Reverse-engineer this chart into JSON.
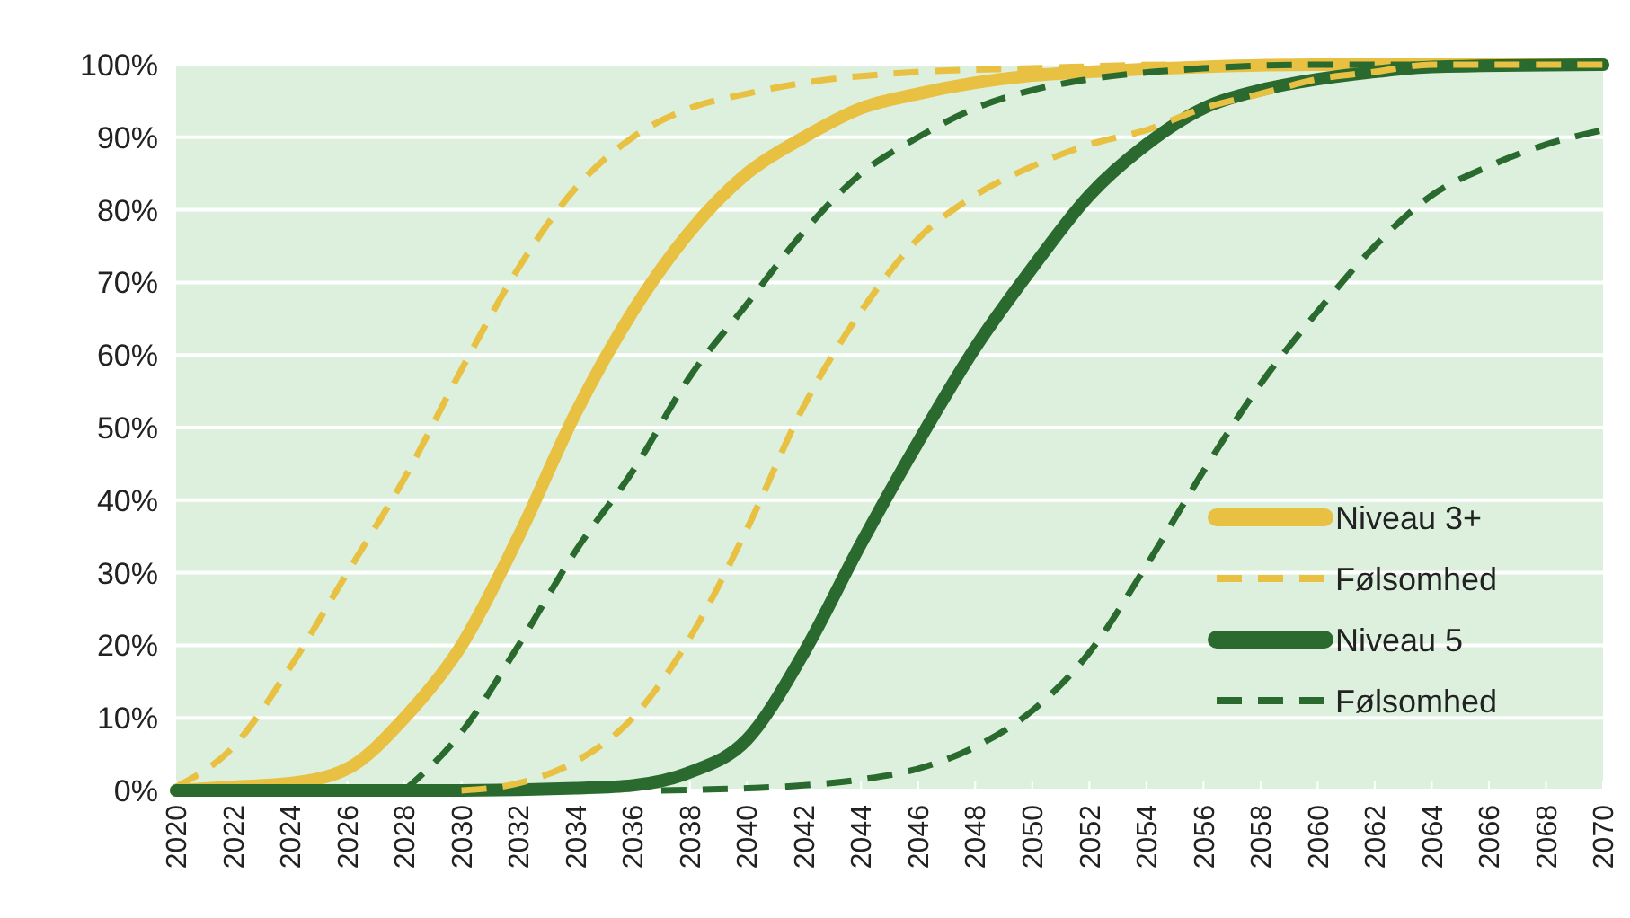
{
  "chart_data": {
    "type": "line",
    "xlim": [
      2020,
      2070
    ],
    "ylim": [
      0,
      100
    ],
    "xticks": [
      2020,
      2022,
      2024,
      2026,
      2028,
      2030,
      2032,
      2034,
      2036,
      2038,
      2040,
      2042,
      2044,
      2046,
      2048,
      2050,
      2052,
      2054,
      2056,
      2058,
      2060,
      2062,
      2064,
      2066,
      2068,
      2070
    ],
    "yticks": [
      {
        "value": 0,
        "label": "0%"
      },
      {
        "value": 10,
        "label": "10%"
      },
      {
        "value": 20,
        "label": "20%"
      },
      {
        "value": 30,
        "label": "30%"
      },
      {
        "value": 40,
        "label": "40%"
      },
      {
        "value": 50,
        "label": "50%"
      },
      {
        "value": 60,
        "label": "60%"
      },
      {
        "value": 70,
        "label": "70%"
      },
      {
        "value": 80,
        "label": "80%"
      },
      {
        "value": 90,
        "label": "90%"
      },
      {
        "value": 100,
        "label": "100%"
      }
    ],
    "grid": "y",
    "legend": "bottom right",
    "marker": "none",
    "series": [
      {
        "name": "Niveau 3+",
        "color": "#e8c042",
        "line_style": "solid",
        "x": [
          2020,
          2022,
          2024,
          2026,
          2028,
          2030,
          2032,
          2034,
          2036,
          2038,
          2040,
          2042,
          2044,
          2046,
          2048,
          2050,
          2052,
          2056,
          2060,
          2070
        ],
        "values": [
          0,
          0.5,
          1,
          3,
          10,
          20,
          35,
          52,
          66,
          77,
          85,
          90,
          94,
          96,
          97.5,
          98.5,
          99,
          99.7,
          100,
          100
        ]
      },
      {
        "name": "Følsomhed",
        "color": "#e8c042",
        "line_style": "dashed",
        "x": [
          2020,
          2022,
          2024,
          2026,
          2028,
          2030,
          2032,
          2034,
          2036,
          2038,
          2040,
          2042,
          2046,
          2050,
          2055,
          2070
        ],
        "values": [
          0.5,
          6,
          17,
          30,
          43,
          58,
          72,
          83,
          90,
          94,
          96,
          97.5,
          99,
          99.5,
          100,
          100
        ]
      },
      {
        "name": "Niveau 5",
        "color": "#2a6a2f",
        "line_style": "solid",
        "x": [
          2020,
          2030,
          2034,
          2036,
          2038,
          2040,
          2042,
          2044,
          2046,
          2048,
          2050,
          2052,
          2054,
          2056,
          2058,
          2060,
          2062,
          2064,
          2070
        ],
        "values": [
          0,
          0,
          0.3,
          0.7,
          2.5,
          7,
          19,
          34,
          48,
          61,
          72,
          82,
          89,
          94,
          96.5,
          98,
          99,
          99.7,
          100
        ]
      },
      {
        "name": "Følsomhed",
        "color": "#2a6a2f",
        "line_style": "dashed",
        "x": [
          2028,
          2030,
          2032,
          2034,
          2036,
          2038,
          2040,
          2042,
          2044,
          2046,
          2048,
          2050,
          2052,
          2056,
          2060,
          2070
        ],
        "values": [
          0,
          8,
          20,
          33,
          44,
          57,
          67,
          77,
          85,
          90,
          94,
          96.5,
          98,
          99.5,
          100,
          100
        ]
      },
      {
        "color": "#e8c042",
        "line_style": "dashed",
        "x": [
          2030,
          2032,
          2034,
          2036,
          2038,
          2040,
          2042,
          2044,
          2046,
          2048,
          2050,
          2052,
          2054,
          2056,
          2058,
          2060,
          2062,
          2064,
          2070
        ],
        "values": [
          0,
          1,
          4,
          10,
          21,
          36,
          53,
          66,
          76,
          82,
          86,
          89,
          91,
          94,
          96,
          98,
          99,
          100,
          100
        ]
      },
      {
        "color": "#2a6a2f",
        "line_style": "dashed",
        "x": [
          2037,
          2040,
          2042,
          2044,
          2046,
          2048,
          2050,
          2052,
          2054,
          2056,
          2058,
          2060,
          2062,
          2064,
          2066,
          2068,
          2070
        ],
        "values": [
          0,
          0.3,
          0.7,
          1.5,
          3,
          6,
          11,
          19,
          31,
          44,
          56,
          66,
          75,
          82,
          86,
          89,
          91
        ]
      }
    ]
  }
}
